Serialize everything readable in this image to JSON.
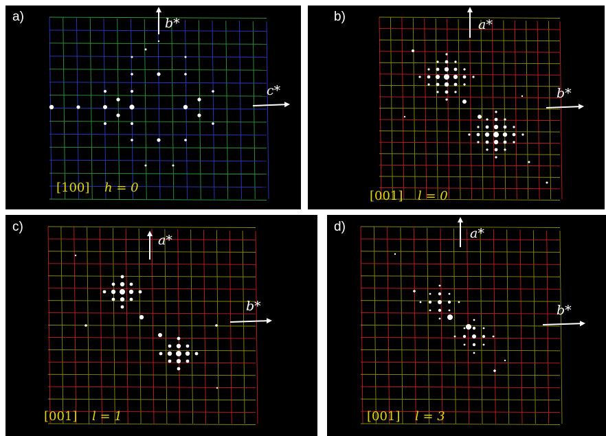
{
  "panels": [
    {
      "label": "a)",
      "zone": "[100]",
      "condition": "h = 0",
      "vertical_axis": "b*",
      "horizontal_axis": "c*"
    },
    {
      "label": "b)",
      "zone": "[001]",
      "condition": "l = 0",
      "vertical_axis": "a*",
      "horizontal_axis": "b*"
    },
    {
      "label": "c)",
      "zone": "[001]",
      "condition": "l = 1",
      "vertical_axis": "a*",
      "horizontal_axis": "b*"
    },
    {
      "label": "d)",
      "zone": "[001]",
      "condition": "l = 3",
      "vertical_axis": "a*",
      "horizontal_axis": "b*"
    }
  ]
}
